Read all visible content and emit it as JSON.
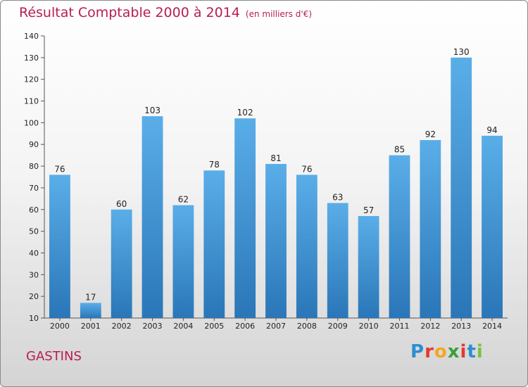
{
  "header": {
    "title": "Résultat Comptable 2000 à 2014",
    "subtitle": "(en milliers d'€)"
  },
  "footer": {
    "commune": "GASTINS",
    "brand": "Proxiti",
    "brand_colors": [
      "#2b8fd0",
      "#e23a2e",
      "#f5a623",
      "#3a9e3a",
      "#e23a2e",
      "#2b8fd0",
      "#7bc043"
    ]
  },
  "chart_data": {
    "type": "bar",
    "title": "Résultat Comptable 2000 à 2014",
    "subtitle": "(en milliers d'€)",
    "categories": [
      "2000",
      "2001",
      "2002",
      "2003",
      "2004",
      "2005",
      "2006",
      "2007",
      "2008",
      "2009",
      "2010",
      "2011",
      "2012",
      "2013",
      "2014"
    ],
    "values": [
      76,
      17,
      60,
      103,
      62,
      78,
      102,
      81,
      76,
      63,
      57,
      85,
      92,
      130,
      94
    ],
    "ylim": [
      10,
      140
    ],
    "yticks": [
      10,
      20,
      30,
      40,
      50,
      60,
      70,
      80,
      90,
      100,
      110,
      120,
      130,
      140
    ],
    "grid": false,
    "bar_color_top": "#5aaee8",
    "bar_color_bottom": "#2a76b8"
  }
}
